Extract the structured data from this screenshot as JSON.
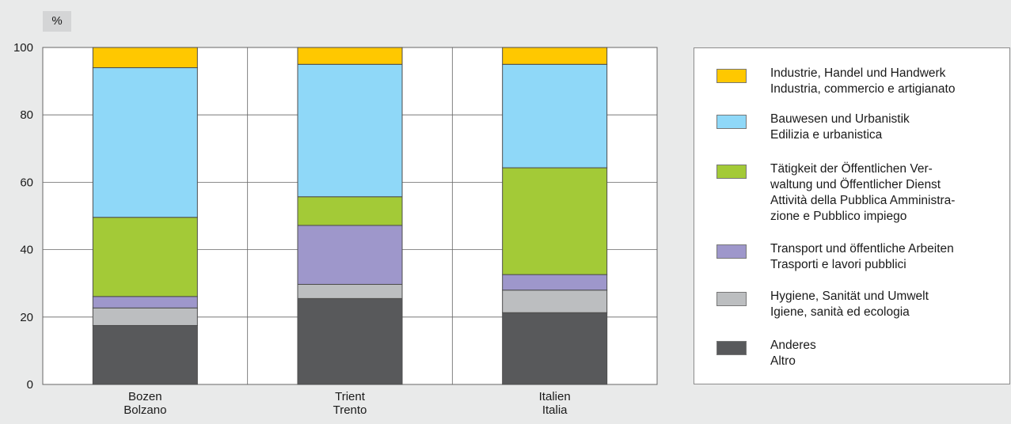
{
  "unit_label": "%",
  "chart_data": {
    "type": "bar",
    "stacked": true,
    "categories": [
      [
        "Bozen",
        "Bolzano"
      ],
      [
        "Trient",
        "Trento"
      ],
      [
        "Italien",
        "Italia"
      ]
    ],
    "ylim": [
      0,
      100
    ],
    "yticks": [
      0,
      20,
      40,
      60,
      80,
      100
    ],
    "grid": true,
    "legend_position": "right",
    "series": [
      {
        "name": [
          "Anderes",
          "Altro"
        ],
        "color": "#58595b",
        "values": [
          17.5,
          25.5,
          21.3
        ]
      },
      {
        "name": [
          "Hygiene, Sanität und Umwelt",
          "Igiene, sanità ed ecologia"
        ],
        "color": "#bcbec0",
        "values": [
          5.2,
          4.2,
          6.7
        ]
      },
      {
        "name": [
          "Transport und öffentliche Arbeiten",
          "Trasporti e lavori pubblici"
        ],
        "color": "#9e97cb",
        "values": [
          3.4,
          17.5,
          4.6
        ]
      },
      {
        "name": [
          "Tätigkeit der Öffentlichen Ver-",
          "waltung und Öffentlicher Dienst",
          "Attività della Pubblica Amministra-",
          "zione e Pubblico impiego"
        ],
        "color": "#a3ca37",
        "values": [
          23.5,
          8.5,
          31.7
        ]
      },
      {
        "name": [
          "Bauwesen und Urbanistik",
          "Edilizia e urbanistica"
        ],
        "color": "#8fd8f8",
        "values": [
          44.4,
          39.3,
          30.7
        ]
      },
      {
        "name": [
          "Industrie, Handel und Handwerk",
          "Industria, commercio e artigianato"
        ],
        "color": "#ffc800",
        "values": [
          6.0,
          5.0,
          5.0
        ]
      }
    ]
  }
}
